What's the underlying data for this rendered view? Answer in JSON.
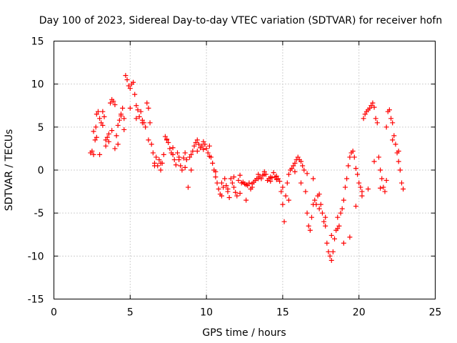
{
  "chart_data": {
    "type": "scatter",
    "title": "Day 100 of 2023, Sidereal Day-to-day VTEC variation (SDTVAR) for receiver hofn",
    "xlabel": "GPS time / hours",
    "ylabel": "SDTVAR / TECUs",
    "xlim": [
      0,
      25
    ],
    "ylim": [
      -15,
      15
    ],
    "xticks": [
      0,
      5,
      10,
      15,
      20,
      25
    ],
    "yticks": [
      -15,
      -10,
      -5,
      0,
      5,
      10,
      15
    ],
    "xtick_labels": [
      "0",
      "5",
      "10",
      "15",
      "20",
      "25"
    ],
    "ytick_labels": [
      "-15",
      "-10",
      "-5",
      "0",
      "5",
      "10",
      "15"
    ],
    "grid": true,
    "legend": "none",
    "marker": "plus",
    "color": "#ff0000",
    "series": [
      {
        "x": [
          2.4,
          2.5,
          2.6,
          2.7,
          2.75,
          2.8,
          2.9,
          3.0,
          3.1,
          3.2,
          3.3,
          3.4,
          3.5,
          3.6,
          3.7,
          3.8,
          3.9,
          4.0,
          4.1,
          4.2,
          4.3,
          4.4,
          4.5,
          4.6,
          4.7,
          4.8,
          4.9,
          5.0,
          5.1,
          5.2,
          5.3,
          5.4,
          5.5,
          5.6,
          5.7,
          5.8,
          5.9,
          6.0,
          6.1,
          6.2,
          6.3,
          6.4,
          6.5,
          6.6,
          6.7,
          6.8,
          6.9,
          7.0,
          7.1,
          7.2,
          7.3,
          7.4,
          7.5,
          7.6,
          7.7,
          7.8,
          7.9,
          8.0,
          8.1,
          8.2,
          8.3,
          8.4,
          8.5,
          8.6,
          8.7,
          8.8,
          8.9,
          9.0,
          9.1,
          9.2,
          9.3,
          9.4,
          9.5,
          9.6,
          9.7,
          9.8,
          9.9,
          10.0,
          10.1,
          10.2,
          10.3,
          10.4,
          10.5,
          10.6,
          10.7,
          10.8,
          10.9,
          11.0,
          11.1,
          11.2,
          11.3,
          11.4,
          11.5,
          11.6,
          11.7,
          11.8,
          11.9,
          12.0,
          12.1,
          12.2,
          12.3,
          12.4,
          12.5,
          12.6,
          12.7,
          12.8,
          12.9,
          13.0,
          13.1,
          13.2,
          13.3,
          13.4,
          13.5,
          13.6,
          13.7,
          13.8,
          13.9,
          14.0,
          14.1,
          14.2,
          14.3,
          14.4,
          14.5,
          14.6,
          14.7,
          14.8,
          14.9,
          15.0,
          15.1,
          15.2,
          15.3,
          15.4,
          15.5,
          15.6,
          15.7,
          15.8,
          15.9,
          16.0,
          16.1,
          16.2,
          16.3,
          16.4,
          16.5,
          16.6,
          16.7,
          16.8,
          16.9,
          17.0,
          17.1,
          17.2,
          17.3,
          17.4,
          17.5,
          17.6,
          17.7,
          17.8,
          17.9,
          18.0,
          18.1,
          18.2,
          18.3,
          18.4,
          18.5,
          18.6,
          18.7,
          18.8,
          18.9,
          19.0,
          19.1,
          19.2,
          19.3,
          19.4,
          19.5,
          19.6,
          19.7,
          19.8,
          19.9,
          20.0,
          20.1,
          20.2,
          20.3,
          20.4,
          20.5,
          20.6,
          20.7,
          20.8,
          20.9,
          21.0,
          21.1,
          21.2,
          21.3,
          21.4,
          21.5,
          21.6,
          21.7,
          21.8,
          21.9,
          22.0,
          22.1,
          22.2,
          22.3,
          22.4,
          22.5,
          22.6,
          22.7,
          22.8,
          22.9
        ],
        "y": [
          2.0,
          2.2,
          1.8,
          3.5,
          5.0,
          6.5,
          6.8,
          6.0,
          5.5,
          6.8,
          6.2,
          3.5,
          3.8,
          4.2,
          7.8,
          8.2,
          8.0,
          7.6,
          4.0,
          3.0,
          5.8,
          6.5,
          7.2,
          6.0,
          11.0,
          10.5,
          9.8,
          9.5,
          10.0,
          10.2,
          8.8,
          7.5,
          7.0,
          6.2,
          6.8,
          5.8,
          5.5,
          5.0,
          7.8,
          7.2,
          5.5,
          3.0,
          2.0,
          0.8,
          1.5,
          0.5,
          1.2,
          0.0,
          0.8,
          1.8,
          3.9,
          3.5,
          3.2,
          2.5,
          2.0,
          1.8,
          1.2,
          0.6,
          2.0,
          1.5,
          0.5,
          0.0,
          1.4,
          2.0,
          1.2,
          -2.0,
          1.5,
          1.8,
          2.2,
          2.8,
          3.2,
          3.5,
          3.0,
          2.6,
          2.8,
          3.3,
          3.0,
          2.5,
          2.0,
          2.8,
          1.5,
          0.8,
          0.0,
          -0.8,
          -1.5,
          -2.2,
          -2.8,
          -3.0,
          -2.0,
          -1.0,
          -1.8,
          -2.5,
          -3.2,
          -1.0,
          -1.5,
          -2.0,
          -2.6,
          -3.0,
          -1.2,
          -0.6,
          -1.5,
          -1.4,
          -1.6,
          -3.5,
          -1.8,
          -1.5,
          -2.2,
          -2.0,
          -1.4,
          -1.2,
          -1.0,
          -0.5,
          -0.8,
          -1.0,
          -0.6,
          -0.2,
          -0.5,
          -1.2,
          -1.0,
          -0.8,
          -0.9,
          -0.3,
          -0.8,
          -1.1,
          -1.0,
          -1.3,
          -2.5,
          -4.0,
          -6.0,
          -3.0,
          -1.5,
          -0.5,
          0.0,
          0.2,
          0.5,
          0.8,
          1.2,
          1.5,
          1.2,
          1.0,
          0.5,
          0.0,
          -2.5,
          -5.0,
          -6.5,
          -7.0,
          -5.5,
          -4.0,
          -3.5,
          -4.0,
          -3.0,
          -4.5,
          -4.0,
          -5.0,
          -6.0,
          -6.5,
          -8.5,
          -9.5,
          -10.0,
          -10.5,
          -9.5,
          -8.0,
          -7.0,
          -5.5,
          -6.5,
          -5.0,
          -4.5,
          -3.5,
          -2.0,
          -1.0,
          0.5,
          1.5,
          2.0,
          2.2,
          1.5,
          0.2,
          -0.5,
          -1.5,
          -2.0,
          -2.5,
          6.0,
          6.5,
          6.8,
          7.0,
          7.2,
          7.5,
          7.8,
          7.3,
          6.0,
          5.5,
          1.5,
          0.0,
          -1.0,
          -2.0,
          -2.5,
          5.0,
          6.8,
          7.0,
          6.0,
          5.5,
          4.0,
          3.0,
          2.0,
          1.0,
          0.0,
          -1.5,
          -2.2
        ]
      },
      {
        "x": [
          2.6,
          2.8,
          3.0,
          3.2,
          3.4,
          3.6,
          3.8,
          4.0,
          4.2,
          4.4,
          4.6,
          5.0,
          5.4,
          5.8,
          6.2,
          6.6,
          7.0,
          7.4,
          7.8,
          8.2,
          8.6,
          9.0,
          9.4,
          9.8,
          10.2,
          10.6,
          11.0,
          11.4,
          11.8,
          12.2,
          12.6,
          13.0,
          13.4,
          13.8,
          14.2,
          14.6,
          15.0,
          15.4,
          15.8,
          16.2,
          16.6,
          17.0,
          17.4,
          17.8,
          18.2,
          18.6,
          19.0,
          19.4,
          19.8,
          20.2,
          20.6,
          21.0,
          21.4,
          21.8,
          22.2,
          22.6
        ],
        "y": [
          4.5,
          3.8,
          1.8,
          5.2,
          2.8,
          3.3,
          4.6,
          2.5,
          5.2,
          6.3,
          4.7,
          7.2,
          6.0,
          5.5,
          3.5,
          0.5,
          0.8,
          3.6,
          2.6,
          1.2,
          0.3,
          0.0,
          2.2,
          2.4,
          1.6,
          -0.2,
          -1.5,
          -2.2,
          -0.8,
          -2.7,
          -1.7,
          -1.6,
          -1.0,
          -0.5,
          -1.3,
          -0.7,
          -2.0,
          -3.5,
          -0.2,
          -1.5,
          -0.4,
          -1.0,
          -2.8,
          -5.5,
          -7.6,
          -6.8,
          -8.5,
          -7.8,
          -4.2,
          -3.0,
          -2.2,
          1.0,
          -2.1,
          -1.2,
          3.5,
          2.2
        ]
      }
    ]
  }
}
